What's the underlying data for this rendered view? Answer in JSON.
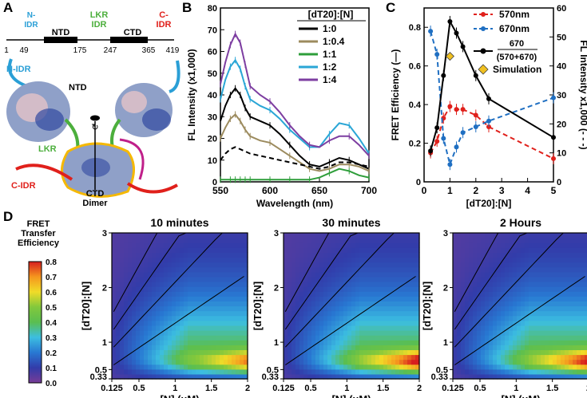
{
  "panels": {
    "A": "A",
    "B": "B",
    "C": "C",
    "D": "D"
  },
  "panelA": {
    "domains": [
      {
        "name": "N-\nIDR",
        "color": "#2a9fd6"
      },
      {
        "name": "NTD",
        "color": "#000000"
      },
      {
        "name": "LKR\nIDR",
        "color": "#4caf3c"
      },
      {
        "name": "CTD",
        "color": "#000000"
      },
      {
        "name": "C-\nIDR",
        "color": "#e0201b"
      }
    ],
    "residues": [
      "1",
      "49",
      "175",
      "247",
      "365",
      "419"
    ],
    "structure_labels": {
      "nidr": "N-IDR",
      "ntd": "NTD",
      "lkr": "LKR",
      "cidr": "C-IDR",
      "ctd": "CTD",
      "dimer": "Dimer"
    }
  },
  "chart_data": [
    {
      "id": "B",
      "type": "line",
      "title": "",
      "xlabel": "Wavelength (nm)",
      "ylabel": "FL Intensity (x1,000)",
      "xlim": [
        550,
        700
      ],
      "ylim": [
        0,
        80
      ],
      "xticks": [
        550,
        600,
        650,
        700
      ],
      "yticks": [
        0,
        10,
        20,
        30,
        40,
        50,
        60,
        70,
        80
      ],
      "legend_title": "[dT20]:[N]",
      "legend_position": "top-right",
      "x": [
        550,
        555,
        560,
        565,
        570,
        575,
        580,
        590,
        600,
        610,
        620,
        630,
        640,
        650,
        660,
        670,
        680,
        690,
        700
      ],
      "series": [
        {
          "name": "1:0",
          "color": "#000000",
          "style": "solid",
          "values": [
            28,
            35,
            40,
            43,
            40,
            34,
            30,
            28,
            26,
            22,
            17,
            12,
            8,
            7,
            9,
            11,
            10,
            8,
            6
          ]
        },
        {
          "name": "1:0.4",
          "color": "#9c8b5e",
          "style": "solid",
          "values": [
            20,
            25,
            29,
            31,
            28,
            24,
            21,
            19,
            18,
            15,
            12,
            9,
            6,
            5,
            6,
            8,
            8,
            7,
            5
          ]
        },
        {
          "name": "1:1",
          "color": "#2e9e3a",
          "style": "solid",
          "values": [
            1,
            1,
            1,
            1,
            1,
            1,
            1,
            1,
            1,
            1,
            1,
            1,
            1,
            2,
            4,
            6,
            5,
            3,
            2
          ]
        },
        {
          "name": "1:2",
          "color": "#2aa6d6",
          "style": "solid",
          "values": [
            38,
            47,
            53,
            56,
            52,
            44,
            38,
            35,
            33,
            29,
            24,
            20,
            16,
            16,
            22,
            27,
            26,
            20,
            13
          ]
        },
        {
          "name": "1:4",
          "color": "#7d3ea1",
          "style": "solid",
          "values": [
            45,
            55,
            63,
            68,
            64,
            54,
            44,
            40,
            37,
            32,
            26,
            21,
            17,
            16,
            19,
            21,
            21,
            17,
            12
          ]
        },
        {
          "name": "dashed",
          "color": "#000000",
          "style": "dashed",
          "values": [
            10,
            13,
            15,
            16,
            15,
            14,
            13,
            12,
            11,
            10,
            9,
            8,
            7,
            6,
            7,
            9,
            9,
            8,
            7
          ]
        }
      ]
    },
    {
      "id": "C",
      "type": "line",
      "xlabel": "[dT20]:[N]",
      "ylabel_left": "FRET Efficiency (—)",
      "ylabel_right": "FL Intensity x1,000 (- - -)",
      "xlim": [
        0,
        5
      ],
      "ylim_left": [
        0,
        0.9
      ],
      "ylim_right": [
        0,
        60
      ],
      "xticks": [
        0,
        1,
        2,
        3,
        4,
        5
      ],
      "yticks_left": [
        0,
        0.2,
        0.4,
        0.6,
        0.8
      ],
      "yticks_right": [
        0,
        10,
        20,
        30,
        40,
        50,
        60
      ],
      "legend_position": "top-right",
      "x": [
        0.25,
        0.5,
        0.75,
        1,
        1.25,
        1.5,
        2,
        2.5,
        5
      ],
      "series": [
        {
          "name": "570nm",
          "axis": "right",
          "color": "#e0201b",
          "style": "dashed",
          "values": [
            10,
            14,
            22,
            26,
            25,
            25,
            23,
            19,
            8
          ]
        },
        {
          "name": "670nm",
          "axis": "right",
          "color": "#1f6fc2",
          "style": "dashed",
          "values": [
            52,
            44,
            15,
            6,
            12,
            17,
            19,
            21,
            29
          ]
        },
        {
          "name": "670\n(570+670)",
          "axis": "left",
          "color": "#000000",
          "style": "solid",
          "values": [
            0.16,
            0.28,
            0.55,
            0.83,
            0.77,
            0.7,
            0.55,
            0.43,
            0.23
          ]
        }
      ],
      "annotations": [
        {
          "name": "Simulation",
          "x": 1,
          "y": 0.65,
          "marker": "diamond",
          "color": "#f0c020"
        }
      ]
    },
    {
      "id": "D",
      "type": "heatmap",
      "colorbar_title": "FRET\nTransfer\nEfficiency",
      "colorbar_ticks": [
        "0.8",
        "0.7",
        "0.6",
        "0.5",
        "0.4",
        "0.3",
        "0.2",
        "0.1",
        "0.0"
      ],
      "xlabel": "[N] (μM)",
      "ylabel": "[dT20]:[N]",
      "xticks": [
        "0.125",
        "0.5",
        "1",
        "1.5",
        "2"
      ],
      "yticks": [
        "0.33",
        "0.5",
        "1",
        "2",
        "3"
      ],
      "xlim": [
        0.125,
        2
      ],
      "ylim": [
        0.33,
        3
      ],
      "subplots": [
        {
          "title": "10 minutes",
          "peak": 0.7
        },
        {
          "title": "30 minutes",
          "peak": 0.82
        },
        {
          "title": "2 Hours",
          "peak": 0.8
        }
      ]
    }
  ]
}
